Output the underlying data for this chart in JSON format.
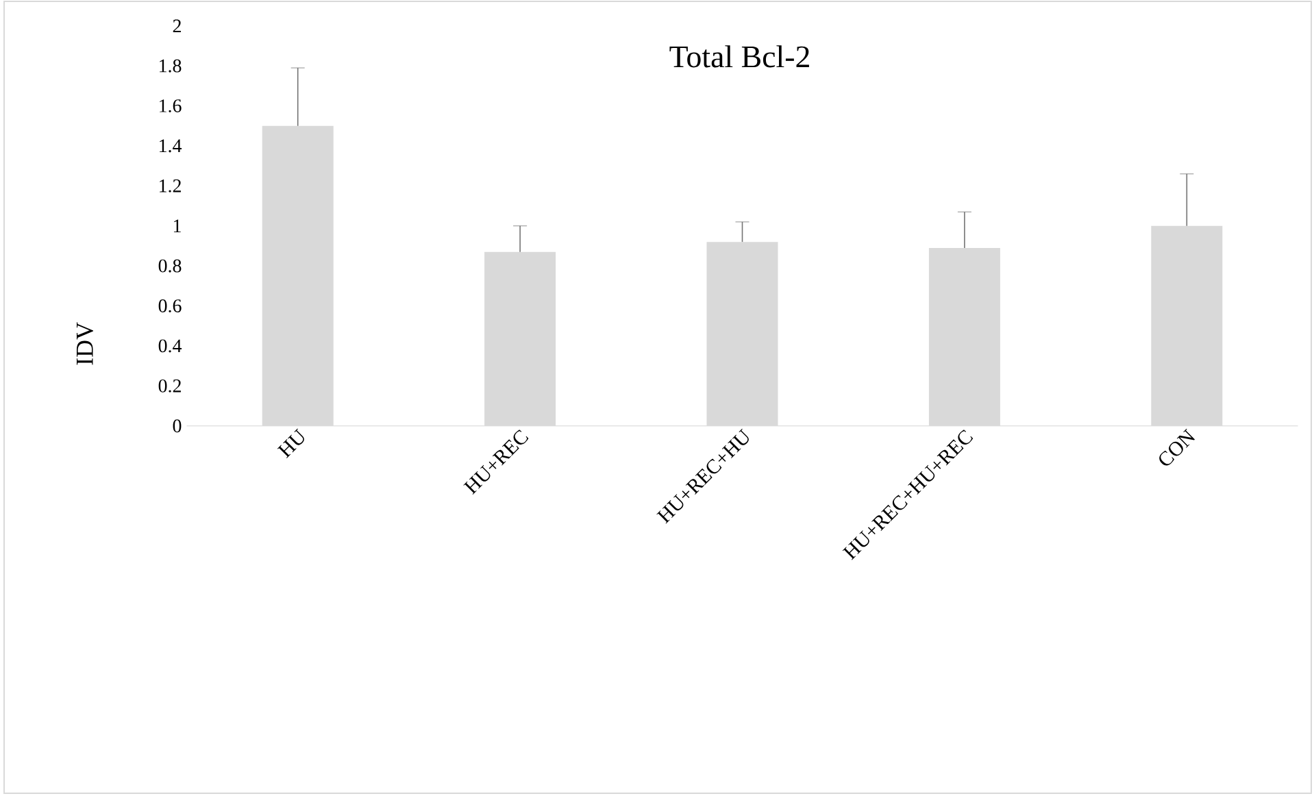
{
  "chart_data": {
    "type": "bar",
    "title": "Total Bcl-2",
    "ylabel": "IDV",
    "categories": [
      "HU",
      "HU+REC",
      "HU+REC+HU",
      "HU+REC+HU+REC",
      "CON"
    ],
    "values": [
      1.5,
      0.87,
      0.92,
      0.89,
      1.0
    ],
    "errors": [
      [
        1.5,
        1.79
      ],
      [
        0.87,
        1.0
      ],
      [
        0.92,
        1.02
      ],
      [
        0.89,
        1.07
      ],
      [
        1.0,
        1.26
      ]
    ],
    "color": "#d9d9d9",
    "ylim": [
      0,
      2
    ],
    "yticks": [
      0,
      0.2,
      0.4,
      0.6,
      0.8,
      1,
      1.2,
      1.4,
      1.6,
      1.8,
      2
    ]
  }
}
